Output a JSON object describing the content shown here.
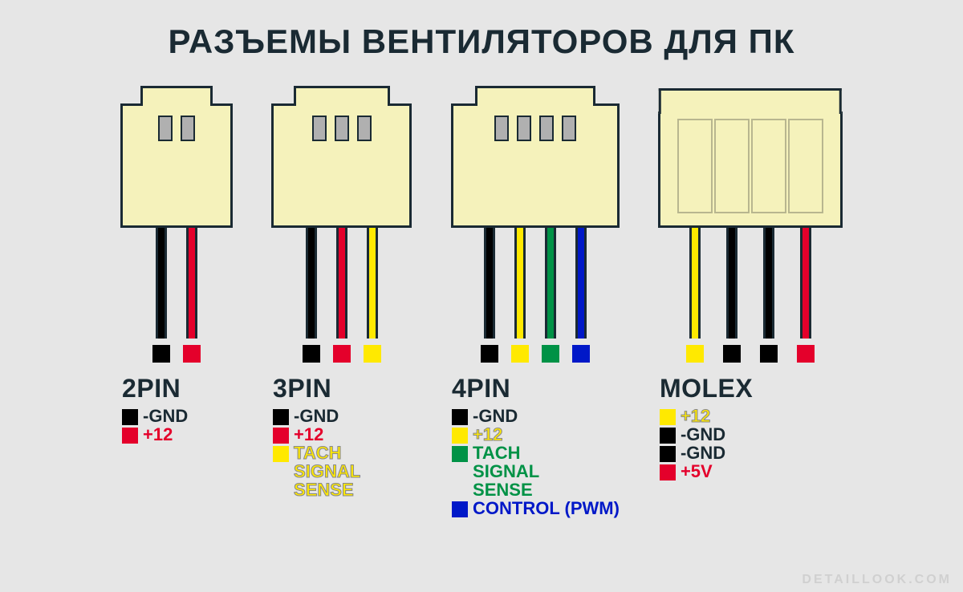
{
  "title": "РАЗЪЕМЫ ВЕНТИЛЯТОРОВ ДЛЯ ПК",
  "watermark": "DETAILLOOK.COM",
  "colors": {
    "black": "#000000",
    "red": "#e4002b",
    "yellow": "#ffe900",
    "green": "#009246",
    "blue": "#0018c8",
    "body": "#f5f2bb",
    "outline": "#1a2a33",
    "pinslot": "#b0b0b0",
    "text_dark": "#1a2a33"
  },
  "connectors": [
    {
      "name": "2PIN",
      "body_width": 140,
      "body_height": 155,
      "top_width": 90,
      "type": "pin",
      "pins": 2,
      "wires": [
        {
          "color": "#000000"
        },
        {
          "color": "#e4002b"
        }
      ],
      "legend": [
        {
          "sq": "#000000",
          "txt": "-GND",
          "txtcolor": "#1a2a33"
        },
        {
          "sq": "#e4002b",
          "txt": "+12",
          "txtcolor": "#e4002b"
        }
      ]
    },
    {
      "name": "3PIN",
      "body_width": 175,
      "body_height": 155,
      "top_width": 120,
      "type": "pin",
      "pins": 3,
      "wires": [
        {
          "color": "#000000"
        },
        {
          "color": "#e4002b"
        },
        {
          "color": "#ffe900"
        }
      ],
      "legend": [
        {
          "sq": "#000000",
          "txt": "-GND",
          "txtcolor": "#1a2a33"
        },
        {
          "sq": "#e4002b",
          "txt": "+12",
          "txtcolor": "#e4002b"
        },
        {
          "sq": "#ffe900",
          "txt": "TACH\nSIGNAL\nSENSE",
          "txtcolor": "#ffe900",
          "stroke": true
        }
      ]
    },
    {
      "name": "4PIN",
      "body_width": 210,
      "body_height": 155,
      "top_width": 150,
      "type": "pin",
      "pins": 4,
      "wires": [
        {
          "color": "#000000"
        },
        {
          "color": "#ffe900"
        },
        {
          "color": "#009246"
        },
        {
          "color": "#0018c8"
        }
      ],
      "legend": [
        {
          "sq": "#000000",
          "txt": "-GND",
          "txtcolor": "#1a2a33"
        },
        {
          "sq": "#ffe900",
          "txt": "+12",
          "txtcolor": "#ffe900",
          "stroke": true
        },
        {
          "sq": "#009246",
          "txt": "TACH\nSIGNAL\nSENSE",
          "txtcolor": "#009246"
        },
        {
          "sq": "#0018c8",
          "txt": "CONTROL (PWM)",
          "txtcolor": "#0018c8"
        }
      ]
    },
    {
      "name": "MOLEX",
      "body_width": 230,
      "body_height": 145,
      "type": "molex",
      "pins": 4,
      "wires": [
        {
          "color": "#ffe900"
        },
        {
          "color": "#000000"
        },
        {
          "color": "#000000"
        },
        {
          "color": "#e4002b"
        }
      ],
      "legend": [
        {
          "sq": "#ffe900",
          "txt": "+12",
          "txtcolor": "#ffe900",
          "stroke": true
        },
        {
          "sq": "#000000",
          "txt": "-GND",
          "txtcolor": "#1a2a33"
        },
        {
          "sq": "#000000",
          "txt": "-GND",
          "txtcolor": "#1a2a33"
        },
        {
          "sq": "#e4002b",
          "txt": "+5V",
          "txtcolor": "#e4002b"
        }
      ]
    }
  ]
}
